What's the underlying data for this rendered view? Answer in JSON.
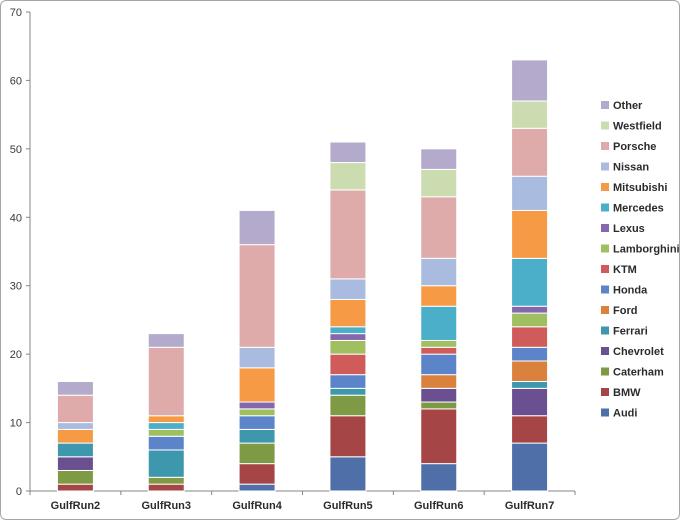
{
  "chart_data": {
    "type": "bar",
    "stacked": true,
    "title": "",
    "xlabel": "",
    "ylabel": "",
    "ylim": [
      0,
      70
    ],
    "yticks": [
      0,
      10,
      20,
      30,
      40,
      50,
      60,
      70
    ],
    "grid": false,
    "legend_position": "right",
    "categories": [
      "GulfRun2",
      "GulfRun3",
      "GulfRun4",
      "GulfRun5",
      "GulfRun6",
      "GulfRun7"
    ],
    "series": [
      {
        "name": "Audi",
        "color": "#4f6fa8",
        "values": [
          0,
          0,
          1,
          5,
          4,
          7
        ]
      },
      {
        "name": "BMW",
        "color": "#a64545",
        "values": [
          1,
          1,
          3,
          6,
          8,
          4
        ]
      },
      {
        "name": "Caterham",
        "color": "#7e9a45",
        "values": [
          2,
          1,
          3,
          3,
          1,
          0
        ]
      },
      {
        "name": "Chevrolet",
        "color": "#6a5090",
        "values": [
          2,
          0,
          0,
          0,
          2,
          4
        ]
      },
      {
        "name": "Ferrari",
        "color": "#3d98ad",
        "values": [
          2,
          4,
          2,
          1,
          0,
          1
        ]
      },
      {
        "name": "Ford",
        "color": "#d9813d",
        "values": [
          0,
          0,
          0,
          0,
          2,
          3
        ]
      },
      {
        "name": "Honda",
        "color": "#5b85c8",
        "values": [
          0,
          2,
          2,
          2,
          3,
          2
        ]
      },
      {
        "name": "KTM",
        "color": "#cf5b5b",
        "values": [
          0,
          0,
          0,
          3,
          1,
          3
        ]
      },
      {
        "name": "Lamborghini",
        "color": "#9fbf60",
        "values": [
          0,
          1,
          1,
          2,
          1,
          2
        ]
      },
      {
        "name": "Lexus",
        "color": "#8467ac",
        "values": [
          0,
          0,
          1,
          1,
          0,
          1
        ]
      },
      {
        "name": "Mercedes",
        "color": "#4bafc9",
        "values": [
          0,
          1,
          0,
          1,
          5,
          7
        ]
      },
      {
        "name": "Mitsubishi",
        "color": "#f79a45",
        "values": [
          2,
          1,
          5,
          4,
          3,
          7
        ]
      },
      {
        "name": "Nissan",
        "color": "#a9bcdf",
        "values": [
          1,
          0,
          3,
          3,
          4,
          5
        ]
      },
      {
        "name": "Porsche",
        "color": "#deaaaa",
        "values": [
          4,
          10,
          15,
          13,
          9,
          7
        ]
      },
      {
        "name": "Westfield",
        "color": "#cbdcb0",
        "values": [
          0,
          0,
          0,
          4,
          4,
          4
        ]
      },
      {
        "name": "Other",
        "color": "#b4aacb",
        "values": [
          2,
          2,
          5,
          3,
          3,
          6
        ]
      }
    ]
  }
}
